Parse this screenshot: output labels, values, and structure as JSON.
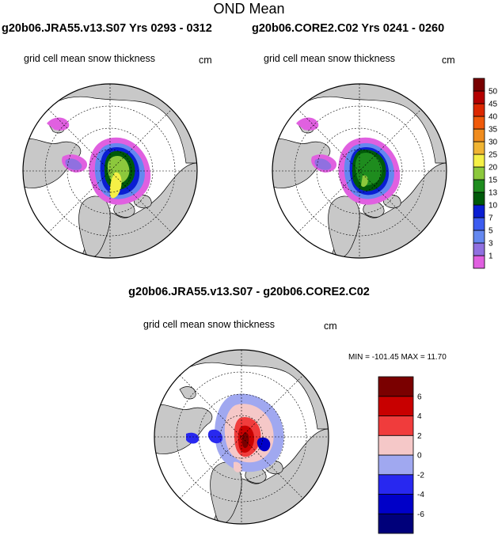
{
  "title": "OND Mean",
  "panels": [
    {
      "run_label": "g20b06.JRA55.v13.S07  Yrs 0293 - 0312",
      "variable": "grid cell mean snow thickness",
      "units": "cm"
    },
    {
      "run_label": "g20b06.CORE2.C02  Yrs 0241 - 0260",
      "variable": "grid cell mean snow thickness",
      "units": "cm"
    }
  ],
  "difference": {
    "title": "g20b06.JRA55.v13.S07 - g20b06.CORE2.C02",
    "variable": "grid cell mean snow thickness",
    "units": "cm",
    "min_label": "MIN = -101.45",
    "max_label": "MAX =  11.70"
  },
  "chart_data": [
    {
      "type": "heatmap",
      "projection": "north polar stereographic",
      "title": "g20b06.JRA55.v13.S07  Yrs 0293 - 0312",
      "subtitle": "grid cell mean snow thickness",
      "units": "cm",
      "colorbar": {
        "levels": [
          "1",
          "3",
          "5",
          "7",
          "10",
          "13",
          "15",
          "20",
          "25",
          "30",
          "35",
          "40",
          "45",
          "50"
        ],
        "colors": [
          "#e060e0",
          "#9070e0",
          "#6488f0",
          "#3c5cf0",
          "#0a1ed2",
          "#005a0a",
          "#1e8c1e",
          "#8cc83c",
          "#f5f046",
          "#f0b432",
          "#f08c1e",
          "#f05a0a",
          "#dc2800",
          "#b40000",
          "#780000"
        ]
      }
    },
    {
      "type": "heatmap",
      "projection": "north polar stereographic",
      "title": "g20b06.CORE2.C02  Yrs 0241 - 0260",
      "subtitle": "grid cell mean snow thickness",
      "units": "cm",
      "colorbar": {
        "levels": [
          "1",
          "3",
          "5",
          "7",
          "10",
          "13",
          "15",
          "20",
          "25",
          "30",
          "35",
          "40",
          "45",
          "50"
        ],
        "colors": [
          "#e060e0",
          "#9070e0",
          "#6488f0",
          "#3c5cf0",
          "#0a1ed2",
          "#005a0a",
          "#1e8c1e",
          "#8cc83c",
          "#f5f046",
          "#f0b432",
          "#f08c1e",
          "#f05a0a",
          "#dc2800",
          "#b40000",
          "#780000"
        ]
      }
    },
    {
      "type": "heatmap",
      "projection": "north polar stereographic",
      "title": "g20b06.JRA55.v13.S07 - g20b06.CORE2.C02",
      "subtitle": "grid cell mean snow thickness",
      "units": "cm",
      "min": -101.45,
      "max": 11.7,
      "colorbar": {
        "levels": [
          "-6",
          "-4",
          "-2",
          "0",
          "2",
          "4",
          "6"
        ],
        "colors": [
          "#00007a",
          "#0000c8",
          "#2828f0",
          "#a0a8f0",
          "#f5c8c8",
          "#f03c3c",
          "#c80000",
          "#7a0000"
        ]
      }
    }
  ]
}
